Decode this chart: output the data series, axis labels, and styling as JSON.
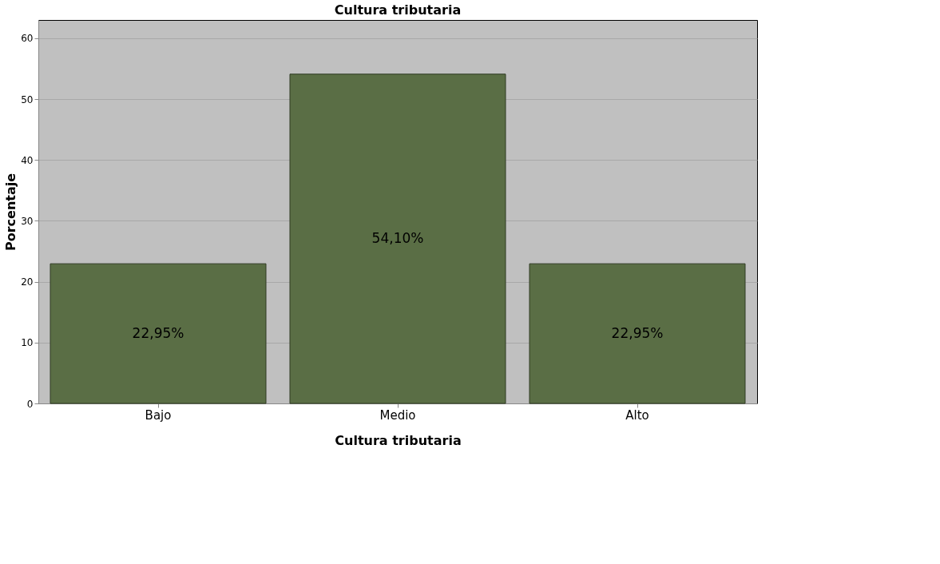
{
  "chart_data": {
    "type": "bar",
    "title": "Cultura tributaria",
    "xlabel": "Cultura tributaria",
    "ylabel": "Porcentaje",
    "categories": [
      "Bajo",
      "Medio",
      "Alto"
    ],
    "values": [
      22.95,
      54.1,
      22.95
    ],
    "value_labels": [
      "22,95%",
      "54,10%",
      "22,95%"
    ],
    "color": "#5a6e45",
    "ylim": [
      0,
      63
    ],
    "yticks": [
      0,
      10,
      20,
      30,
      40,
      50,
      60
    ],
    "grid": "y"
  }
}
